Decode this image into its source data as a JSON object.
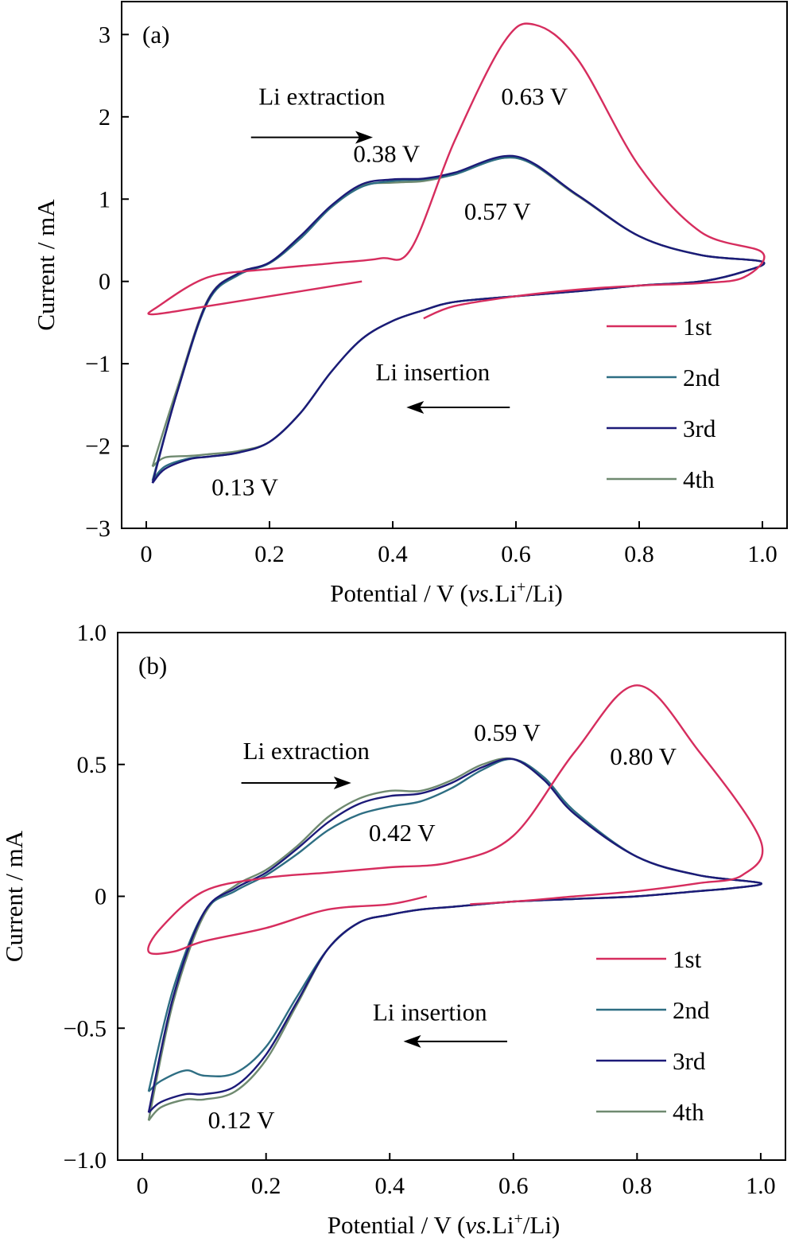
{
  "colors": {
    "1st": "#d62d5e",
    "2nd": "#2e6e83",
    "3rd": "#1c1a78",
    "4th": "#6f8a70"
  },
  "chart_data": [
    {
      "type": "line",
      "panel_label": "(a)",
      "xlabel_main": "Potential / V (",
      "xlabel_italic": "vs.",
      "xlabel_li": "Li",
      "xlabel_sup": "+",
      "xlabel_end": "/Li)",
      "ylabel": "Current / mA",
      "xlim": [
        -0.04,
        1.04
      ],
      "ylim": [
        -3,
        3.4
      ],
      "xticks": [
        0,
        0.2,
        0.4,
        0.6,
        0.8,
        1.0
      ],
      "xtick_labels": [
        "0",
        "0.2",
        "0.4",
        "0.6",
        "0.8",
        "1.0"
      ],
      "yticks": [
        -3,
        -2,
        -1,
        0,
        1,
        2,
        3
      ],
      "ytick_labels": [
        "−3",
        "−2",
        "−1",
        "0",
        "1",
        "2",
        "3"
      ],
      "annotations": [
        {
          "text": "Li extraction",
          "x": 0.285,
          "y": 2.15
        },
        {
          "text": "0.63 V",
          "x": 0.63,
          "y": 2.15
        },
        {
          "text": "0.38 V",
          "x": 0.39,
          "y": 1.45
        },
        {
          "text": "0.57 V",
          "x": 0.57,
          "y": 0.75
        },
        {
          "text": "Li insertion",
          "x": 0.465,
          "y": -1.2
        },
        {
          "text": "0.13 V",
          "x": 0.16,
          "y": -2.6
        }
      ],
      "arrows": [
        {
          "direction": "right",
          "x1": 0.17,
          "x2": 0.36,
          "y": 1.75
        },
        {
          "direction": "left",
          "x1": 0.59,
          "x2": 0.43,
          "y": -1.53
        }
      ],
      "legend_position": "lower-right",
      "series": [
        {
          "name": "1st",
          "x": [
            0.35,
            0.2,
            0.1,
            0.01,
            0.02,
            0.1,
            0.2,
            0.3,
            0.38,
            0.43,
            0.5,
            0.58,
            0.63,
            0.7,
            0.8,
            0.9,
            1.0,
            0.97,
            0.9,
            0.8,
            0.7,
            0.6,
            0.5,
            0.45
          ],
          "y": [
            0.0,
            -0.18,
            -0.3,
            -0.4,
            -0.3,
            0.05,
            0.15,
            0.22,
            0.28,
            0.4,
            1.7,
            2.9,
            3.12,
            2.7,
            1.4,
            0.6,
            0.35,
            0.05,
            -0.02,
            -0.05,
            -0.1,
            -0.18,
            -0.3,
            -0.45
          ]
        },
        {
          "name": "2nd",
          "x": [
            0.01,
            0.05,
            0.1,
            0.15,
            0.2,
            0.25,
            0.3,
            0.35,
            0.4,
            0.45,
            0.5,
            0.6,
            0.7,
            0.8,
            0.9,
            1.0,
            0.97,
            0.9,
            0.8,
            0.7,
            0.6,
            0.5,
            0.45,
            0.4,
            0.35,
            0.3,
            0.25,
            0.2,
            0.15,
            0.1,
            0.07,
            0.03,
            0.01
          ],
          "y": [
            -2.42,
            -1.35,
            -0.25,
            0.08,
            0.22,
            0.52,
            0.9,
            1.15,
            1.22,
            1.24,
            1.3,
            1.5,
            1.05,
            0.55,
            0.32,
            0.24,
            0.12,
            0.0,
            -0.05,
            -0.12,
            -0.18,
            -0.25,
            -0.35,
            -0.48,
            -0.7,
            -1.1,
            -1.6,
            -1.95,
            -2.08,
            -2.13,
            -2.15,
            -2.25,
            -2.42
          ]
        },
        {
          "name": "3rd",
          "x": [
            0.01,
            0.05,
            0.1,
            0.15,
            0.2,
            0.25,
            0.3,
            0.35,
            0.4,
            0.45,
            0.5,
            0.6,
            0.7,
            0.8,
            0.9,
            1.0,
            0.97,
            0.9,
            0.8,
            0.7,
            0.6,
            0.5,
            0.45,
            0.4,
            0.35,
            0.3,
            0.25,
            0.2,
            0.15,
            0.1,
            0.07,
            0.03,
            0.01
          ],
          "y": [
            -2.45,
            -1.35,
            -0.23,
            0.1,
            0.23,
            0.55,
            0.92,
            1.18,
            1.24,
            1.25,
            1.32,
            1.52,
            1.05,
            0.55,
            0.32,
            0.24,
            0.12,
            0.0,
            -0.05,
            -0.12,
            -0.18,
            -0.25,
            -0.35,
            -0.48,
            -0.7,
            -1.1,
            -1.6,
            -1.95,
            -2.08,
            -2.13,
            -2.16,
            -2.28,
            -2.45
          ]
        },
        {
          "name": "4th",
          "x": [
            0.01,
            0.05,
            0.1,
            0.15,
            0.2,
            0.25,
            0.3,
            0.35,
            0.4,
            0.45,
            0.5,
            0.6,
            0.7,
            0.8,
            0.9,
            1.0,
            0.97,
            0.9,
            0.8,
            0.7,
            0.6,
            0.5,
            0.45,
            0.4,
            0.35,
            0.3,
            0.25,
            0.2,
            0.15,
            0.1,
            0.07,
            0.03,
            0.01
          ],
          "y": [
            -2.25,
            -1.3,
            -0.22,
            0.1,
            0.23,
            0.55,
            0.9,
            1.16,
            1.2,
            1.22,
            1.3,
            1.5,
            1.04,
            0.55,
            0.32,
            0.24,
            0.12,
            0.0,
            -0.05,
            -0.12,
            -0.18,
            -0.25,
            -0.35,
            -0.48,
            -0.7,
            -1.1,
            -1.6,
            -1.95,
            -2.06,
            -2.1,
            -2.12,
            -2.14,
            -2.25
          ]
        }
      ]
    },
    {
      "type": "line",
      "panel_label": "(b)",
      "xlabel_main": "Potential / V (",
      "xlabel_italic": "vs.",
      "xlabel_li": "Li",
      "xlabel_sup": "+",
      "xlabel_end": "/Li)",
      "ylabel": "Current / mA",
      "xlim": [
        -0.04,
        1.04
      ],
      "ylim": [
        -1.0,
        1.0
      ],
      "xticks": [
        0,
        0.2,
        0.4,
        0.6,
        0.8,
        1.0
      ],
      "xtick_labels": [
        "0",
        "0.2",
        "0.4",
        "0.6",
        "0.8",
        "1.0"
      ],
      "yticks": [
        -1.0,
        -0.5,
        0,
        0.5,
        1.0
      ],
      "ytick_labels": [
        "−1.0",
        "−0.5",
        "0",
        "0.5",
        "1.0"
      ],
      "annotations": [
        {
          "text": "Li extraction",
          "x": 0.265,
          "y": 0.52
        },
        {
          "text": "0.59 V",
          "x": 0.59,
          "y": 0.59
        },
        {
          "text": "0.80 V",
          "x": 0.81,
          "y": 0.5
        },
        {
          "text": "0.42 V",
          "x": 0.42,
          "y": 0.21
        },
        {
          "text": "Li insertion",
          "x": 0.465,
          "y": -0.47
        },
        {
          "text": "0.12 V",
          "x": 0.16,
          "y": -0.88
        }
      ],
      "arrows": [
        {
          "direction": "right",
          "x1": 0.16,
          "x2": 0.33,
          "y": 0.43
        },
        {
          "direction": "left",
          "x1": 0.59,
          "x2": 0.43,
          "y": -0.55
        }
      ],
      "legend_position": "lower-right",
      "series": [
        {
          "name": "1st",
          "x": [
            0.46,
            0.4,
            0.3,
            0.2,
            0.1,
            0.05,
            0.01,
            0.03,
            0.1,
            0.2,
            0.3,
            0.4,
            0.5,
            0.6,
            0.7,
            0.8,
            0.9,
            1.0,
            0.97,
            0.9,
            0.8,
            0.7,
            0.6,
            0.53
          ],
          "y": [
            0.0,
            -0.03,
            -0.05,
            -0.12,
            -0.17,
            -0.21,
            -0.21,
            -0.12,
            0.02,
            0.07,
            0.09,
            0.11,
            0.13,
            0.23,
            0.55,
            0.8,
            0.55,
            0.21,
            0.08,
            0.05,
            0.02,
            0.0,
            -0.02,
            -0.03
          ]
        },
        {
          "name": "2nd",
          "x": [
            0.01,
            0.05,
            0.1,
            0.15,
            0.2,
            0.25,
            0.3,
            0.35,
            0.4,
            0.45,
            0.5,
            0.55,
            0.6,
            0.65,
            0.7,
            0.8,
            0.9,
            1.0,
            0.95,
            0.9,
            0.8,
            0.7,
            0.6,
            0.5,
            0.45,
            0.4,
            0.35,
            0.3,
            0.25,
            0.2,
            0.15,
            0.1,
            0.07,
            0.03,
            0.01
          ],
          "y": [
            -0.74,
            -0.35,
            -0.06,
            0.02,
            0.08,
            0.16,
            0.25,
            0.31,
            0.34,
            0.36,
            0.41,
            0.48,
            0.52,
            0.45,
            0.32,
            0.15,
            0.08,
            0.05,
            0.03,
            0.02,
            0.0,
            -0.01,
            -0.02,
            -0.04,
            -0.05,
            -0.07,
            -0.1,
            -0.2,
            -0.38,
            -0.57,
            -0.67,
            -0.68,
            -0.66,
            -0.7,
            -0.74
          ]
        },
        {
          "name": "3rd",
          "x": [
            0.01,
            0.05,
            0.1,
            0.15,
            0.2,
            0.25,
            0.3,
            0.35,
            0.4,
            0.45,
            0.5,
            0.55,
            0.6,
            0.65,
            0.7,
            0.8,
            0.9,
            1.0,
            0.95,
            0.9,
            0.8,
            0.7,
            0.6,
            0.5,
            0.45,
            0.4,
            0.35,
            0.3,
            0.25,
            0.2,
            0.15,
            0.1,
            0.07,
            0.03,
            0.01
          ],
          "y": [
            -0.82,
            -0.38,
            -0.06,
            0.03,
            0.09,
            0.18,
            0.28,
            0.35,
            0.38,
            0.39,
            0.43,
            0.49,
            0.52,
            0.44,
            0.31,
            0.15,
            0.08,
            0.05,
            0.03,
            0.02,
            0.0,
            -0.01,
            -0.02,
            -0.04,
            -0.05,
            -0.07,
            -0.1,
            -0.2,
            -0.4,
            -0.6,
            -0.72,
            -0.75,
            -0.75,
            -0.78,
            -0.82
          ]
        },
        {
          "name": "4th",
          "x": [
            0.01,
            0.05,
            0.1,
            0.15,
            0.2,
            0.25,
            0.3,
            0.35,
            0.4,
            0.45,
            0.5,
            0.55,
            0.6,
            0.65,
            0.7,
            0.8,
            0.9,
            1.0,
            0.95,
            0.9,
            0.8,
            0.7,
            0.6,
            0.5,
            0.45,
            0.4,
            0.35,
            0.3,
            0.25,
            0.2,
            0.15,
            0.1,
            0.07,
            0.03,
            0.01
          ],
          "y": [
            -0.85,
            -0.4,
            -0.07,
            0.04,
            0.1,
            0.19,
            0.3,
            0.37,
            0.4,
            0.4,
            0.44,
            0.5,
            0.52,
            0.44,
            0.31,
            0.15,
            0.08,
            0.05,
            0.03,
            0.02,
            0.0,
            -0.01,
            -0.02,
            -0.04,
            -0.05,
            -0.07,
            -0.1,
            -0.2,
            -0.41,
            -0.62,
            -0.74,
            -0.77,
            -0.77,
            -0.8,
            -0.85
          ]
        }
      ]
    }
  ]
}
